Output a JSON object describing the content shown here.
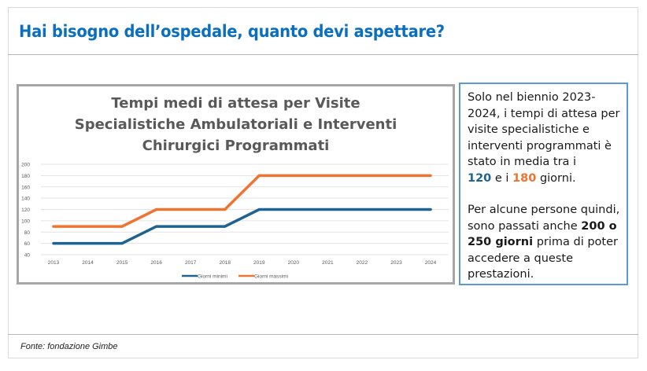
{
  "slide": {
    "title": "Hai bisogno dell’ospedale, quanto devi aspettare?",
    "source": "Fonte: fondazione Gimbe"
  },
  "side_panel": {
    "p1_text": "Solo nel biennio 2023-2024, i tempi di attesa per visite specialistiche e interventi programmati è stato in media tra i",
    "p1_min_value": "120",
    "p1_connector": " e i ",
    "p1_max_value": "180",
    "p1_tail": " giorni.",
    "p2_text": "Per alcune persone quindi, sono passati anche",
    "p2_bold": "200 o 250 giorni",
    "p2_tail": "prima di poter accedere a queste prestazioni.",
    "colors": {
      "min": "#1f6391",
      "max": "#ed7431"
    }
  },
  "chart_data": {
    "type": "line",
    "title_lines": [
      "Tempi medi di attesa per Visite",
      "Specialistiche Ambulatoriali e Interventi",
      "Chirurgici Programmati"
    ],
    "x": [
      "2013",
      "2014",
      "2015",
      "2016",
      "2017",
      "2018",
      "2019",
      "2020",
      "2021",
      "2022",
      "2023",
      "2024"
    ],
    "yticks": [
      "200",
      "180",
      "160",
      "140",
      "120",
      "100",
      "80",
      "60",
      "40"
    ],
    "ylim": [
      40,
      200
    ],
    "grid": true,
    "legend_position": "bottom",
    "series": [
      {
        "name": "Giorni minimi",
        "color": "#1f6391",
        "values": [
          60,
          60,
          60,
          90,
          90,
          90,
          120,
          120,
          120,
          120,
          120,
          120
        ]
      },
      {
        "name": "Giorni massimi",
        "color": "#ed7431",
        "values": [
          90,
          90,
          90,
          120,
          120,
          120,
          180,
          180,
          180,
          180,
          180,
          180
        ]
      }
    ]
  }
}
